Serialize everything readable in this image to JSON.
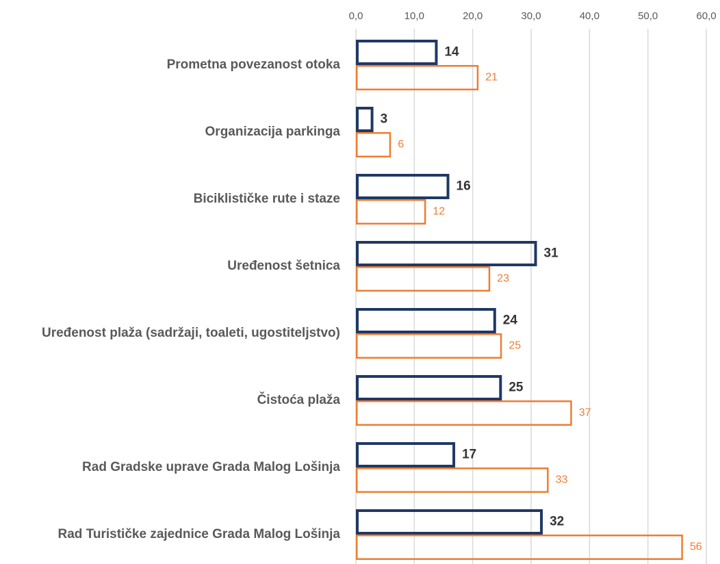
{
  "chart_data": {
    "type": "hbar",
    "categories": [
      "Prometna povezanost otoka",
      "Organizacija parkinga",
      "Biciklističke rute i staze",
      "Uređenost šetnica",
      "Uređenost plaža (sadržaji, toaleti, ugostiteljstvo)",
      "Čistoća plaža",
      "Rad Gradske uprave Grada Malog Lošinja",
      "Rad Turističke zajednice Grada Malog Lošinja"
    ],
    "series": [
      {
        "color": "#203864",
        "values": [
          14,
          3,
          16,
          31,
          24,
          25,
          17,
          32
        ]
      },
      {
        "color": "#ed7d31",
        "values": [
          21,
          6,
          12,
          23,
          25,
          37,
          33,
          56
        ]
      }
    ],
    "xlim": [
      0,
      60
    ],
    "xticks": [
      {
        "value": 0,
        "label": "0,0"
      },
      {
        "value": 10,
        "label": "10,0"
      },
      {
        "value": 20,
        "label": "20,0"
      },
      {
        "value": 30,
        "label": "30,0"
      },
      {
        "value": 40,
        "label": "40,0"
      },
      {
        "value": 50,
        "label": "50,0"
      },
      {
        "value": 60,
        "label": "60,0"
      }
    ],
    "grid": true
  }
}
